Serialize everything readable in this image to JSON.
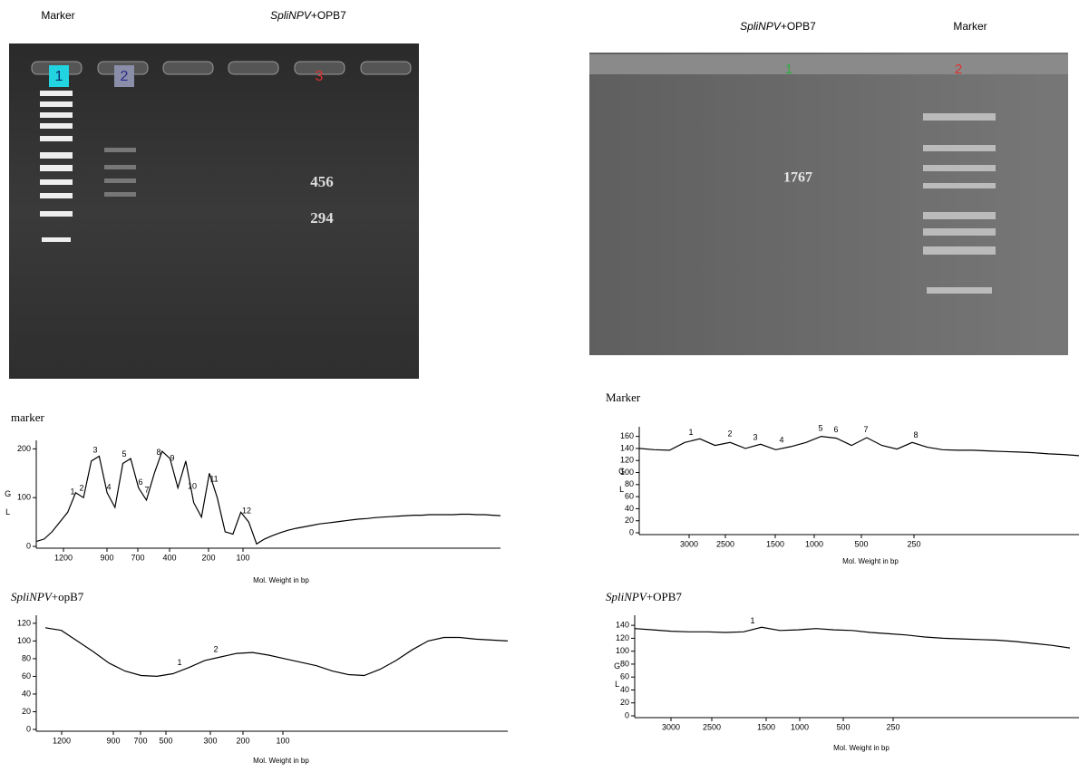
{
  "gels": [
    {
      "headers": [
        "Marker",
        {
          "italic": "SpliNPV",
          "rest": "+OPB7"
        }
      ],
      "lanes": [
        "1",
        "2",
        "3"
      ],
      "band_labels": [
        "456",
        "294"
      ]
    },
    {
      "headers": [
        {
          "italic": "SpliNPV",
          "rest": "+OPB7"
        },
        "Marker"
      ],
      "lanes": [
        "1",
        "2"
      ],
      "band_labels": [
        "1767"
      ]
    }
  ],
  "chart_data": [
    {
      "type": "line",
      "title": "marker",
      "ylabel": "G L",
      "xlabel": "Mol. Weight in bp",
      "color": "#000000",
      "ylim": [
        0,
        210
      ],
      "yticks": [
        0,
        100,
        200
      ],
      "xticks": [
        1200,
        900,
        700,
        400,
        200,
        100
      ],
      "peak_labels": [
        "1",
        "2",
        "3",
        "4",
        "5",
        "6",
        "7",
        "8",
        "9",
        "10",
        "11",
        "12"
      ],
      "values": [
        10,
        15,
        30,
        50,
        70,
        110,
        100,
        175,
        185,
        110,
        80,
        170,
        180,
        120,
        95,
        150,
        195,
        180,
        120,
        175,
        90,
        60,
        150,
        100,
        30,
        25,
        70,
        50,
        5,
        15,
        22,
        28,
        33,
        37,
        40,
        43,
        46,
        48,
        50,
        52,
        54,
        56,
        57,
        59,
        60,
        61,
        62,
        63,
        64,
        64,
        65,
        65,
        65,
        65,
        66,
        66,
        65,
        65,
        64,
        63
      ]
    },
    {
      "type": "line",
      "title": {
        "italic": "SpliNPV",
        "rest": "+opB7"
      },
      "xlabel": "Mol. Weight in bp",
      "color": "#000000",
      "ylim": [
        0,
        125
      ],
      "yticks": [
        0,
        20,
        40,
        60,
        80,
        100,
        120
      ],
      "xticks": [
        1200,
        900,
        700,
        500,
        300,
        200,
        100
      ],
      "peak_labels": [
        "1",
        "2"
      ],
      "values": [
        115,
        112,
        100,
        88,
        75,
        66,
        61,
        60,
        63,
        70,
        78,
        82,
        86,
        87,
        84,
        80,
        76,
        72,
        66,
        62,
        61,
        68,
        78,
        90,
        100,
        104,
        104,
        102,
        101,
        100
      ]
    },
    {
      "type": "line",
      "title": "Marker",
      "ylabel": "G L",
      "xlabel": "Mol. Weight in bp",
      "color": "#000000",
      "ylim": [
        0,
        170
      ],
      "yticks": [
        0,
        20,
        40,
        60,
        80,
        100,
        120,
        140,
        160
      ],
      "xticks": [
        3000,
        2500,
        1500,
        1000,
        500,
        250
      ],
      "peak_labels": [
        "1",
        "2",
        "3",
        "4",
        "5",
        "6",
        "7",
        "8"
      ],
      "values": [
        140,
        138,
        137,
        150,
        156,
        145,
        150,
        140,
        147,
        138,
        143,
        150,
        160,
        157,
        145,
        158,
        145,
        139,
        150,
        142,
        138,
        137,
        137,
        136,
        135,
        134,
        133,
        131,
        130,
        128
      ]
    },
    {
      "type": "line",
      "title": {
        "italic": "SpliNPV",
        "rest": "+OPB7"
      },
      "ylabel": "G L",
      "xlabel": "Mol. Weight in bp",
      "color": "#000000",
      "ylim": [
        0,
        150
      ],
      "yticks": [
        0,
        20,
        40,
        60,
        80,
        100,
        120,
        140
      ],
      "xticks": [
        3000,
        2500,
        1500,
        1000,
        500,
        250
      ],
      "peak_labels": [
        "1"
      ],
      "values": [
        135,
        133,
        131,
        130,
        130,
        129,
        130,
        137,
        132,
        133,
        135,
        133,
        132,
        129,
        127,
        125,
        122,
        120,
        119,
        118,
        117,
        115,
        112,
        109,
        105
      ]
    }
  ]
}
